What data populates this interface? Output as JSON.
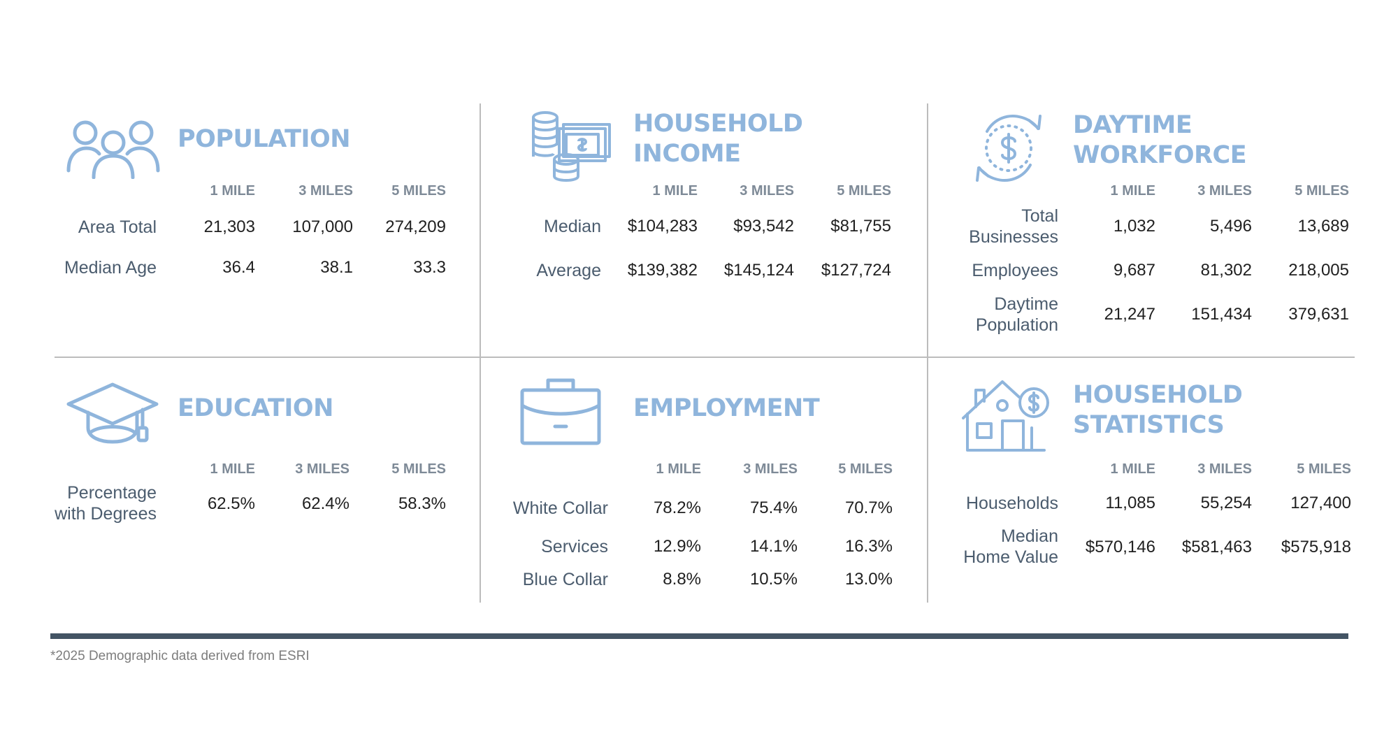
{
  "columns": [
    "1 MILE",
    "3 MILES",
    "5 MILES"
  ],
  "population": {
    "title": "POPULATION",
    "rows": [
      {
        "label": "Area Total",
        "values": [
          "21,303",
          "107,000",
          "274,209"
        ]
      },
      {
        "label": "Median Age",
        "values": [
          "36.4",
          "38.1",
          "33.3"
        ]
      }
    ]
  },
  "household_income": {
    "title_line1": "HOUSEHOLD",
    "title_line2": "INCOME",
    "rows": [
      {
        "label": "Median",
        "values": [
          "$104,283",
          "$93,542",
          "$81,755"
        ]
      },
      {
        "label": "Average",
        "values": [
          "$139,382",
          "$145,124",
          "$127,724"
        ]
      }
    ]
  },
  "daytime_workforce": {
    "title_line1": "DAYTIME",
    "title_line2": "WORKFORCE",
    "rows": [
      {
        "label_line1": "Total",
        "label_line2": "Businesses",
        "values": [
          "1,032",
          "5,496",
          "13,689"
        ]
      },
      {
        "label": "Employees",
        "values": [
          "9,687",
          "81,302",
          "218,005"
        ]
      },
      {
        "label_line1": "Daytime",
        "label_line2": "Population",
        "values": [
          "21,247",
          "151,434",
          "379,631"
        ]
      }
    ]
  },
  "education": {
    "title": "EDUCATION",
    "rows": [
      {
        "label_line1": "Percentage",
        "label_line2": "with Degrees",
        "values": [
          "62.5%",
          "62.4%",
          "58.3%"
        ]
      }
    ]
  },
  "employment": {
    "title": "EMPLOYMENT",
    "rows": [
      {
        "label": "White Collar",
        "values": [
          "78.2%",
          "75.4%",
          "70.7%"
        ]
      },
      {
        "label": "Services",
        "values": [
          "12.9%",
          "14.1%",
          "16.3%"
        ]
      },
      {
        "label": "Blue Collar",
        "values": [
          "8.8%",
          "10.5%",
          "13.0%"
        ]
      }
    ]
  },
  "household_statistics": {
    "title_line1": "HOUSEHOLD",
    "title_line2": "STATISTICS",
    "rows": [
      {
        "label": "Households",
        "values": [
          "11,085",
          "55,254",
          "127,400"
        ]
      },
      {
        "label_line1": "Median",
        "label_line2": "Home Value",
        "values": [
          "$570,146",
          "$581,463",
          "$575,918"
        ]
      }
    ]
  },
  "footnote": "*2025 Demographic data derived from ESRI",
  "colors": {
    "accent": "#8fb5dc",
    "label": "#4b5c6e",
    "divider": "#bcbcbc",
    "footer_bar": "#435464"
  },
  "icons": [
    "people-icon",
    "money-stack-icon",
    "dollar-cycle-icon",
    "graduation-cap-icon",
    "briefcase-icon",
    "house-dollar-icon"
  ]
}
